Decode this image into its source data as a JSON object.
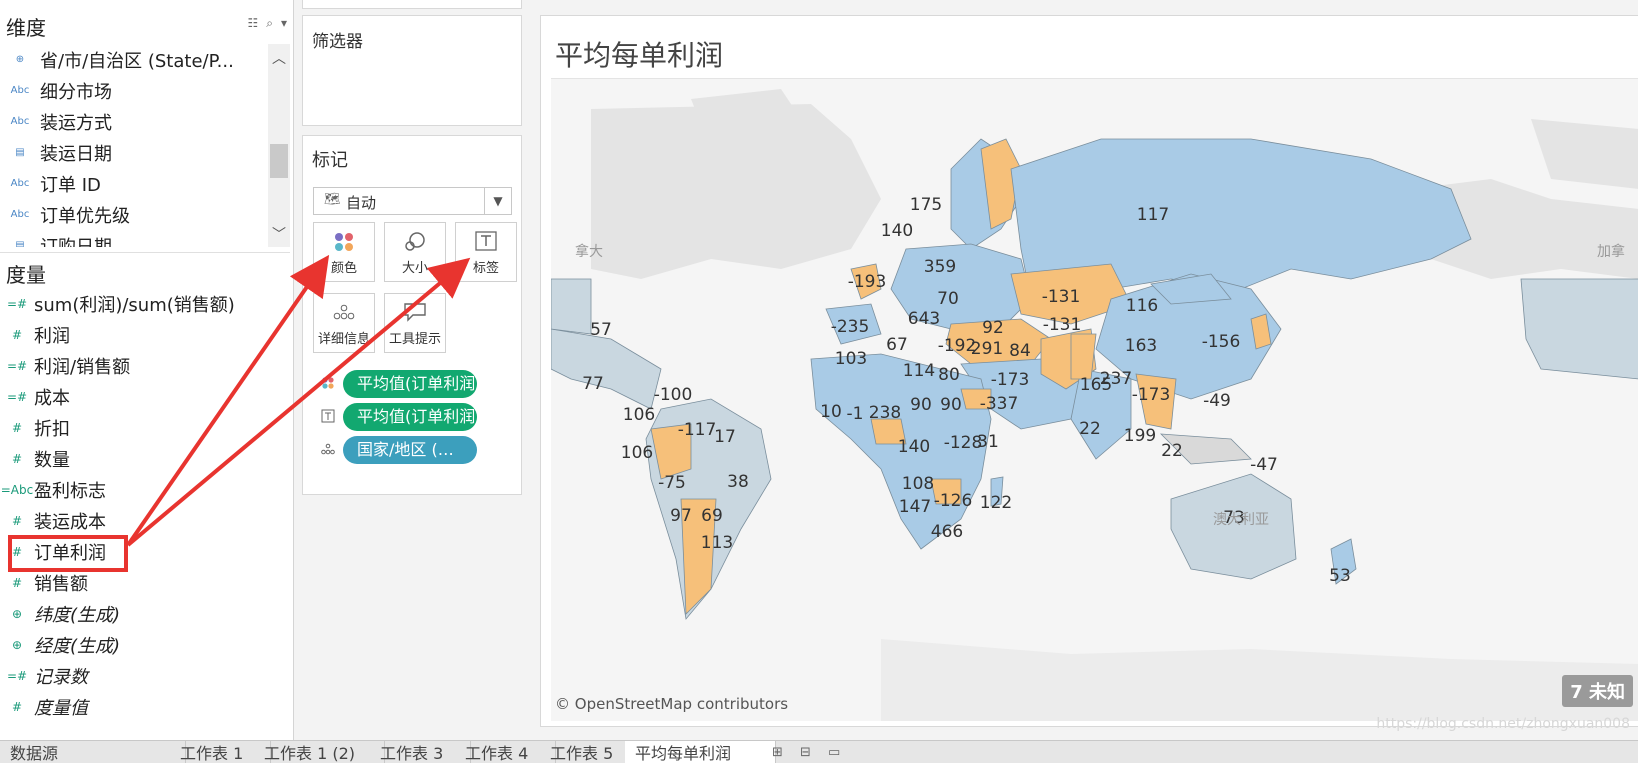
{
  "data_pane": {
    "dimensions_title": "维度",
    "dimensions": [
      {
        "icon": "globe-icon",
        "glyph": "⊕",
        "label": "省/市/自治区 (State/P..."
      },
      {
        "icon": "abc-icon",
        "glyph": "Abc",
        "label": "细分市场"
      },
      {
        "icon": "abc-icon",
        "glyph": "Abc",
        "label": "装运方式"
      },
      {
        "icon": "calendar-icon",
        "glyph": "▤",
        "label": "装运日期"
      },
      {
        "icon": "abc-icon",
        "glyph": "Abc",
        "label": "订单 ID"
      },
      {
        "icon": "abc-icon",
        "glyph": "Abc",
        "label": "订单优先级"
      },
      {
        "icon": "calendar-icon",
        "glyph": "▤",
        "label": "订购日期"
      }
    ],
    "measures_title": "度量",
    "measures": [
      {
        "icon": "calc-measure-icon",
        "glyph": "=#",
        "label": "sum(利润)/sum(销售额)",
        "italic": false
      },
      {
        "icon": "measure-icon",
        "glyph": "#",
        "label": "利润",
        "italic": false
      },
      {
        "icon": "calc-measure-icon",
        "glyph": "=#",
        "label": "利润/销售额",
        "italic": false
      },
      {
        "icon": "calc-measure-icon",
        "glyph": "=#",
        "label": "成本",
        "italic": false
      },
      {
        "icon": "measure-icon",
        "glyph": "#",
        "label": "折扣",
        "italic": false
      },
      {
        "icon": "measure-icon",
        "glyph": "#",
        "label": "数量",
        "italic": false
      },
      {
        "icon": "calc-abc-icon",
        "glyph": "=Abc",
        "label": "盈利标志",
        "italic": false
      },
      {
        "icon": "measure-icon",
        "glyph": "#",
        "label": "装运成本",
        "italic": false
      },
      {
        "icon": "measure-icon",
        "glyph": "#",
        "label": "订单利润",
        "italic": false
      },
      {
        "icon": "measure-icon",
        "glyph": "#",
        "label": "销售额",
        "italic": false
      },
      {
        "icon": "globe-icon",
        "glyph": "⊕",
        "label": "纬度(生成)",
        "italic": true
      },
      {
        "icon": "globe-icon",
        "glyph": "⊕",
        "label": "经度(生成)",
        "italic": true
      },
      {
        "icon": "calc-measure-icon",
        "glyph": "=#",
        "label": "记录数",
        "italic": true
      },
      {
        "icon": "measure-icon",
        "glyph": "#",
        "label": "度量值",
        "italic": true
      }
    ]
  },
  "filters": {
    "title": "筛选器"
  },
  "marks": {
    "title": "标记",
    "mark_type": "自动",
    "buttons": [
      {
        "name": "color",
        "label": "颜色"
      },
      {
        "name": "size",
        "label": "大小"
      },
      {
        "name": "label",
        "label": "标签"
      },
      {
        "name": "detail",
        "label": "详细信息"
      },
      {
        "name": "tooltip",
        "label": "工具提示"
      }
    ],
    "pills": [
      {
        "label": "平均值(订单利润)",
        "kind": "color"
      },
      {
        "label": "平均值(订单利润)",
        "kind": "label"
      },
      {
        "label": "国家/地区 (Cou..",
        "kind": "detail"
      }
    ]
  },
  "view": {
    "title": "平均每单利润",
    "credit": "© OpenStreetMap contributors",
    "unknown_badge": "7 未知",
    "background_labels": [
      "拿大",
      "加拿",
      "澳大利亚"
    ],
    "colors": {
      "positive": "#a9cbe6",
      "negative": "#f6c07a",
      "neutral": "#c9d7e0",
      "land": "#e2e2e2",
      "ocean": "#f5f5f5"
    },
    "country_labels": [
      "57",
      "77",
      "-100",
      "106",
      "106",
      "-117",
      "17",
      "-75",
      "38",
      "97",
      "69",
      "113",
      "175",
      "140",
      "359",
      "-193",
      "70",
      "643",
      "-235",
      "67",
      "92",
      "103",
      "-192",
      "291",
      "84",
      "-131",
      "114",
      "80",
      "-173",
      "10",
      "-1",
      "238",
      "90",
      "90",
      "-337",
      "140",
      "-128",
      "31",
      "108",
      "147",
      "-126",
      "466",
      "122",
      "117",
      "-131",
      "116",
      "163",
      "-156",
      "165",
      "237",
      "-173",
      "-49",
      "22",
      "199",
      "22",
      "-47",
      "73",
      "53"
    ]
  },
  "tabs": [
    "数据源",
    "工作表 1",
    "工作表 1 (2)",
    "工作表 3",
    "工作表 4",
    "工作表 5",
    "平均每单利润"
  ],
  "watermark": "https://blog.csdn.net/zhongxuan008"
}
